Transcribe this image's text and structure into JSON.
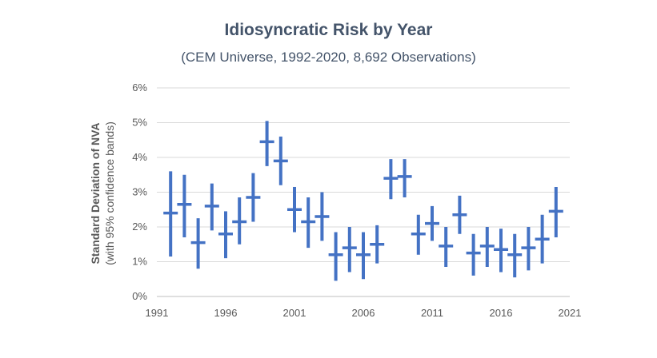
{
  "chart_data": {
    "type": "errorbar",
    "title": "Idiosyncratic Risk by Year",
    "subtitle": "(CEM Universe, 1992-2020, 8,692 Observations)",
    "ylabel": "Standard Deviation of NVA",
    "ylabel_sub": "(with 95% confidence bands)",
    "xlabel": "",
    "xlim": [
      1991,
      2021
    ],
    "ylim": [
      0,
      6
    ],
    "x_ticks": [
      1991,
      1996,
      2001,
      2006,
      2011,
      2016,
      2021
    ],
    "y_ticks": [
      "0%",
      "1%",
      "2%",
      "3%",
      "4%",
      "5%",
      "6%"
    ],
    "y_tick_values": [
      0,
      1,
      2,
      3,
      4,
      5,
      6
    ],
    "grid": true,
    "color": "#4472C4",
    "points": [
      {
        "x": 1992,
        "y": 2.4,
        "lo": 1.15,
        "hi": 3.6
      },
      {
        "x": 1993,
        "y": 2.65,
        "lo": 1.7,
        "hi": 3.5
      },
      {
        "x": 1994,
        "y": 1.55,
        "lo": 0.8,
        "hi": 2.25
      },
      {
        "x": 1995,
        "y": 2.6,
        "lo": 1.9,
        "hi": 3.25
      },
      {
        "x": 1996,
        "y": 1.8,
        "lo": 1.1,
        "hi": 2.45
      },
      {
        "x": 1997,
        "y": 2.15,
        "lo": 1.5,
        "hi": 2.85
      },
      {
        "x": 1998,
        "y": 2.85,
        "lo": 2.15,
        "hi": 3.55
      },
      {
        "x": 1999,
        "y": 4.45,
        "lo": 3.75,
        "hi": 5.05
      },
      {
        "x": 2000,
        "y": 3.9,
        "lo": 3.2,
        "hi": 4.6
      },
      {
        "x": 2001,
        "y": 2.5,
        "lo": 1.85,
        "hi": 3.15
      },
      {
        "x": 2002,
        "y": 2.15,
        "lo": 1.4,
        "hi": 2.85
      },
      {
        "x": 2003,
        "y": 2.3,
        "lo": 1.6,
        "hi": 3.0
      },
      {
        "x": 2004,
        "y": 1.2,
        "lo": 0.45,
        "hi": 1.85
      },
      {
        "x": 2005,
        "y": 1.4,
        "lo": 0.7,
        "hi": 2.0
      },
      {
        "x": 2006,
        "y": 1.2,
        "lo": 0.5,
        "hi": 1.85
      },
      {
        "x": 2007,
        "y": 1.5,
        "lo": 0.95,
        "hi": 2.05
      },
      {
        "x": 2008,
        "y": 3.4,
        "lo": 2.8,
        "hi": 3.95
      },
      {
        "x": 2009,
        "y": 3.45,
        "lo": 2.85,
        "hi": 3.95
      },
      {
        "x": 2010,
        "y": 1.8,
        "lo": 1.2,
        "hi": 2.35
      },
      {
        "x": 2011,
        "y": 2.1,
        "lo": 1.6,
        "hi": 2.6
      },
      {
        "x": 2012,
        "y": 1.45,
        "lo": 0.85,
        "hi": 2.0
      },
      {
        "x": 2013,
        "y": 2.35,
        "lo": 1.8,
        "hi": 2.9
      },
      {
        "x": 2014,
        "y": 1.25,
        "lo": 0.6,
        "hi": 1.8
      },
      {
        "x": 2015,
        "y": 1.45,
        "lo": 0.85,
        "hi": 2.0
      },
      {
        "x": 2016,
        "y": 1.35,
        "lo": 0.7,
        "hi": 1.95
      },
      {
        "x": 2017,
        "y": 1.2,
        "lo": 0.55,
        "hi": 1.8
      },
      {
        "x": 2018,
        "y": 1.4,
        "lo": 0.75,
        "hi": 2.0
      },
      {
        "x": 2019,
        "y": 1.65,
        "lo": 0.95,
        "hi": 2.35
      },
      {
        "x": 2020,
        "y": 2.45,
        "lo": 1.7,
        "hi": 3.15
      }
    ]
  }
}
